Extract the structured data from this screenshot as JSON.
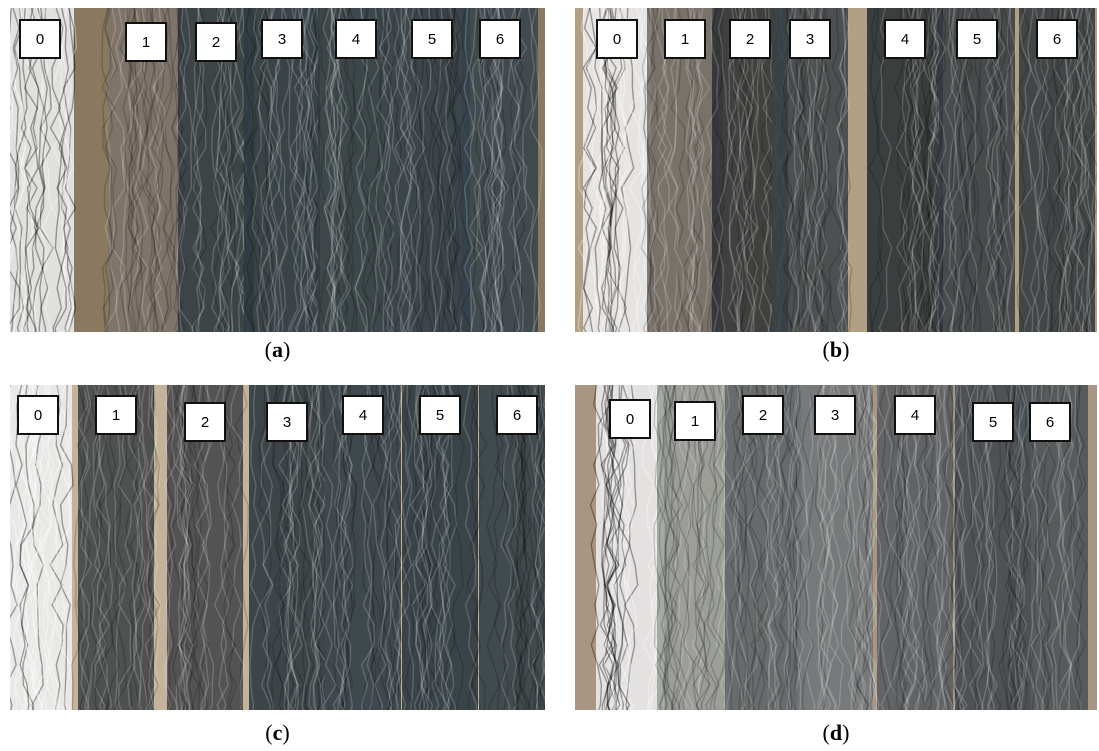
{
  "panels": [
    {
      "tags": [
        "0",
        "1",
        "2",
        "3",
        "4",
        "5",
        "6"
      ],
      "caption": {
        "open": "(",
        "letter": "a",
        "close": ")"
      }
    },
    {
      "tags": [
        "0",
        "1",
        "2",
        "3",
        "4",
        "5",
        "6"
      ],
      "caption": {
        "open": "(",
        "letter": "b",
        "close": ")"
      }
    },
    {
      "tags": [
        "0",
        "1",
        "2",
        "3",
        "4",
        "5",
        "6"
      ],
      "caption": {
        "open": "(",
        "letter": "c",
        "close": ")"
      }
    },
    {
      "tags": [
        "0",
        "1",
        "2",
        "3",
        "4",
        "5",
        "6"
      ],
      "caption": {
        "open": "(",
        "letter": "d",
        "close": ")"
      }
    }
  ]
}
